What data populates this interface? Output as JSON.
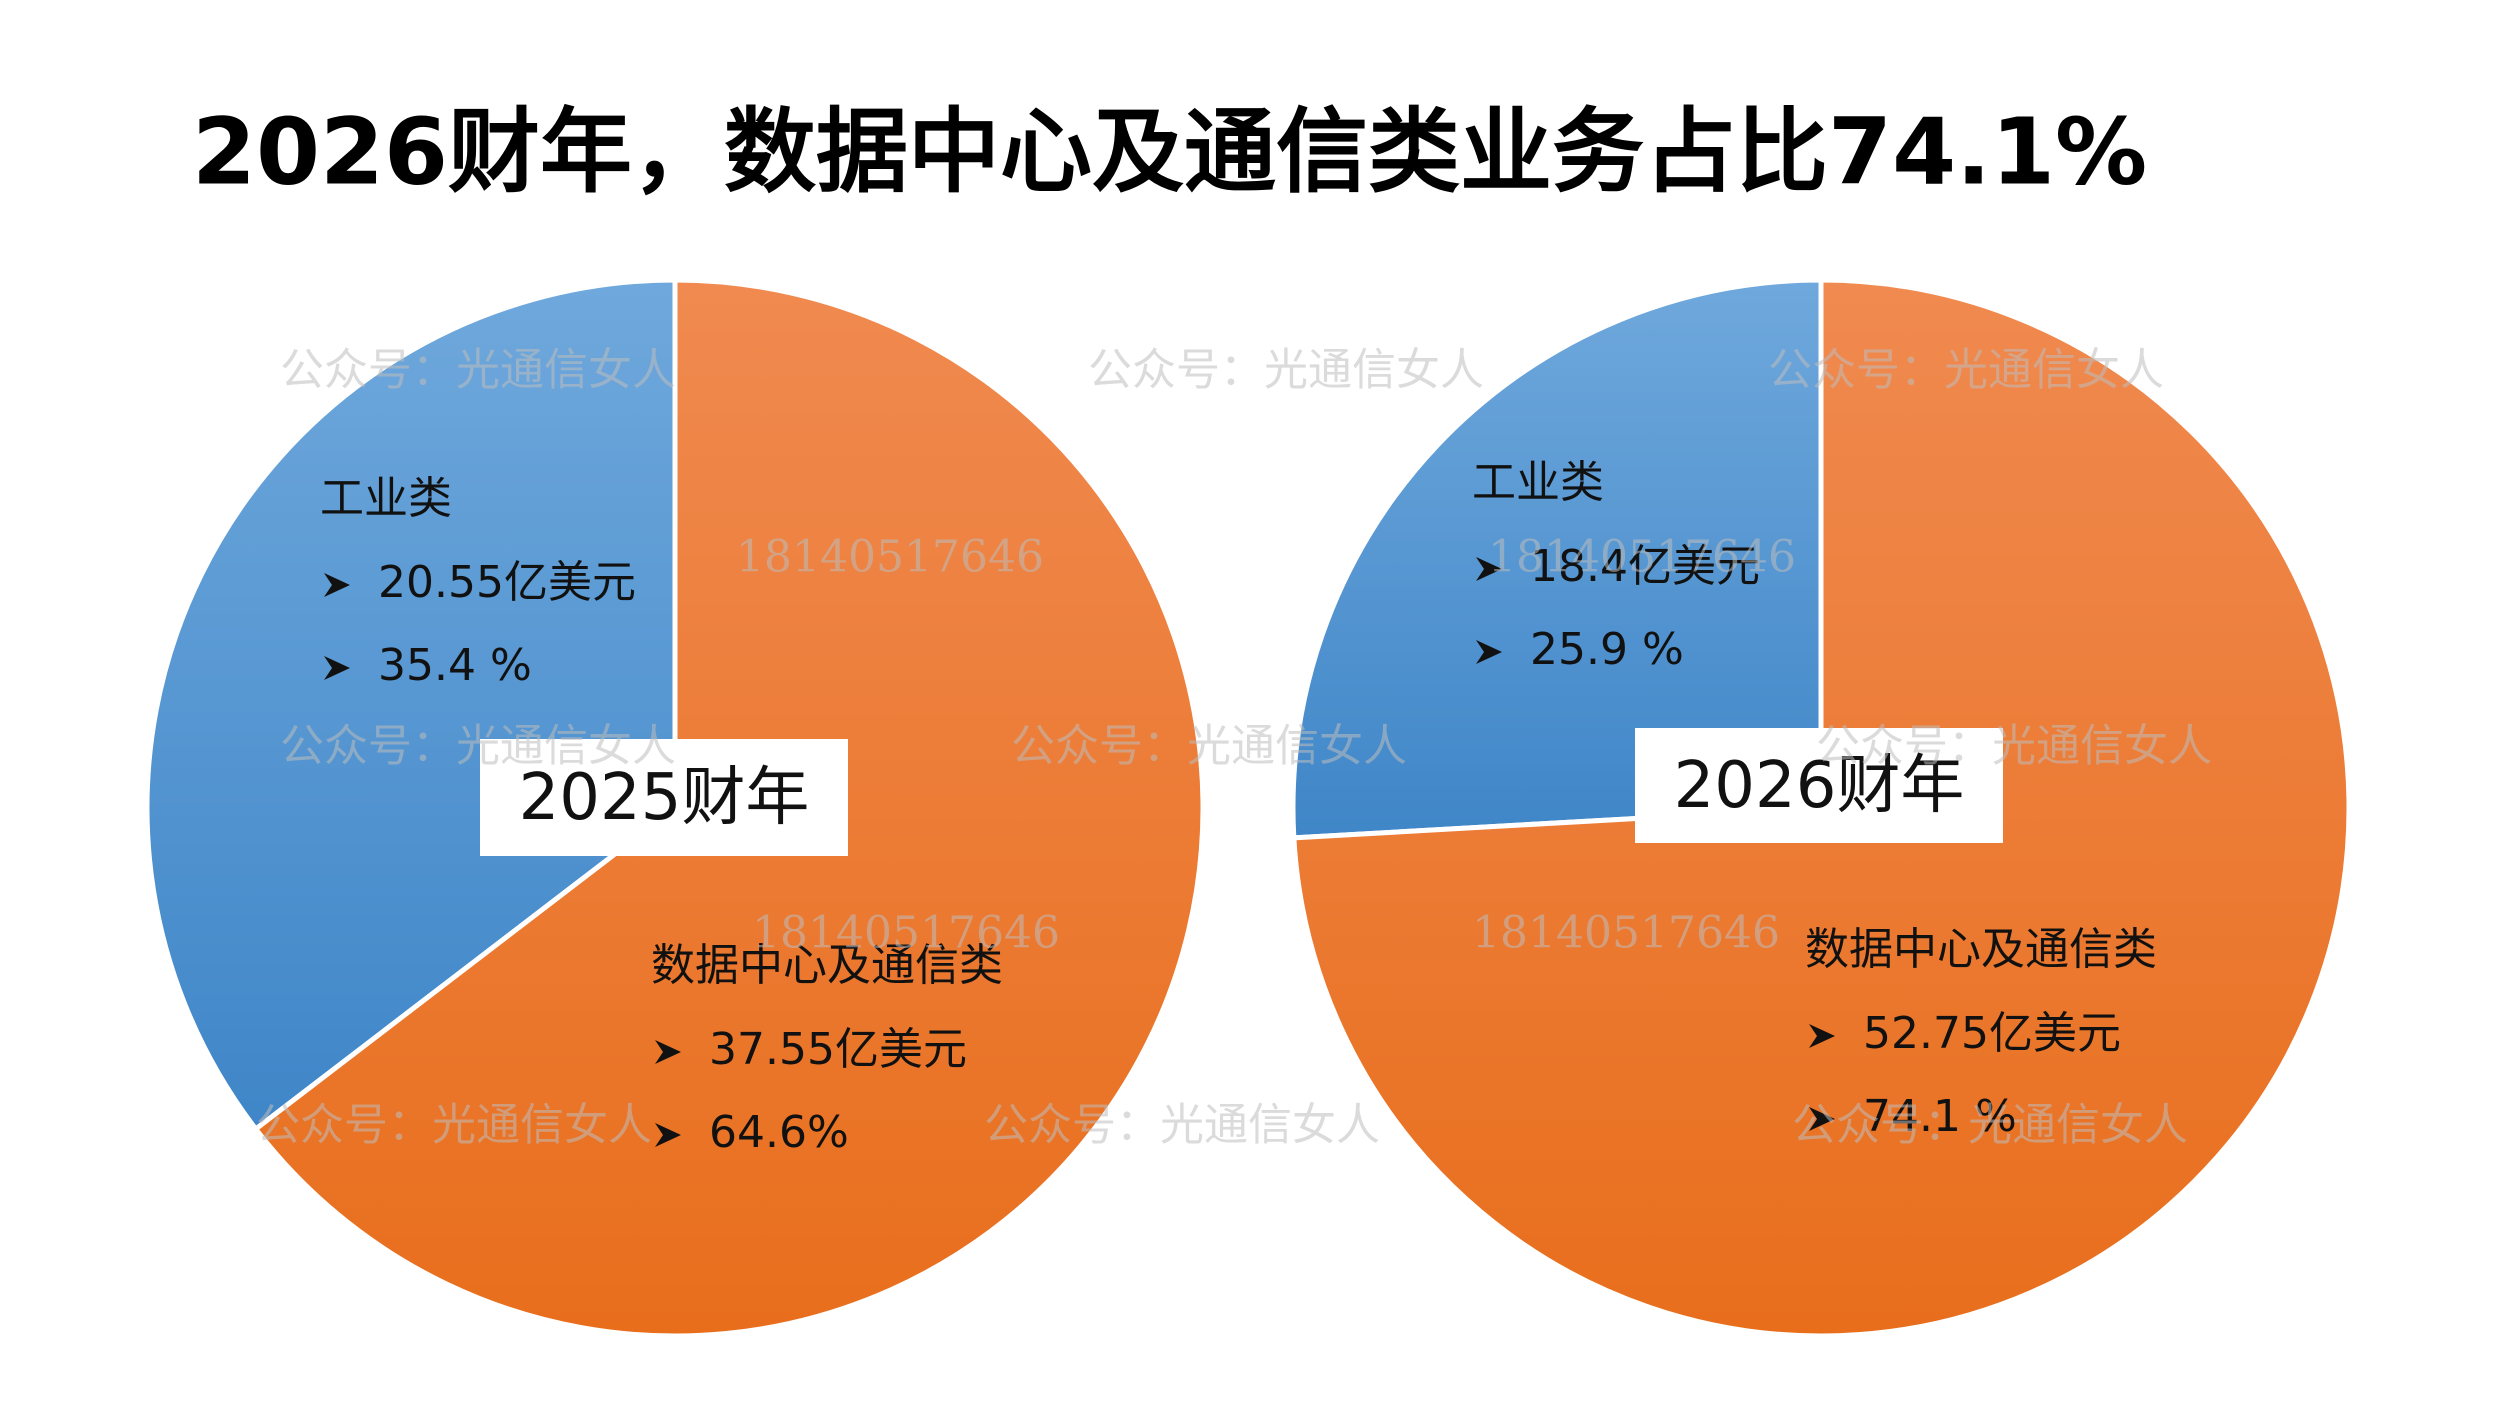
{
  "title": "2026财年，数据中心及通信类业务占比74.1%",
  "watermark": {
    "account": "公众号：光通信女人",
    "phone": "18140517646"
  },
  "chart_data": [
    {
      "type": "pie",
      "title": "2025财年",
      "categories": [
        "工业类",
        "数据中心及通信类"
      ],
      "values": [
        35.4,
        64.6
      ],
      "value_labels": [
        "35.4 %",
        "64.6%"
      ],
      "amount_labels": [
        "20.55亿美元",
        "37.55亿美元"
      ],
      "colors": [
        "#5b9bd5",
        "#ed7d31"
      ]
    },
    {
      "type": "pie",
      "title": "2026财年",
      "categories": [
        "工业类",
        "数据中心及通信类"
      ],
      "values": [
        25.9,
        74.1
      ],
      "value_labels": [
        "25.9 %",
        "74.1 %"
      ],
      "amount_labels": [
        "18.4亿美元",
        "52.75亿美元"
      ],
      "colors": [
        "#5b9bd5",
        "#ed7d31"
      ]
    }
  ]
}
